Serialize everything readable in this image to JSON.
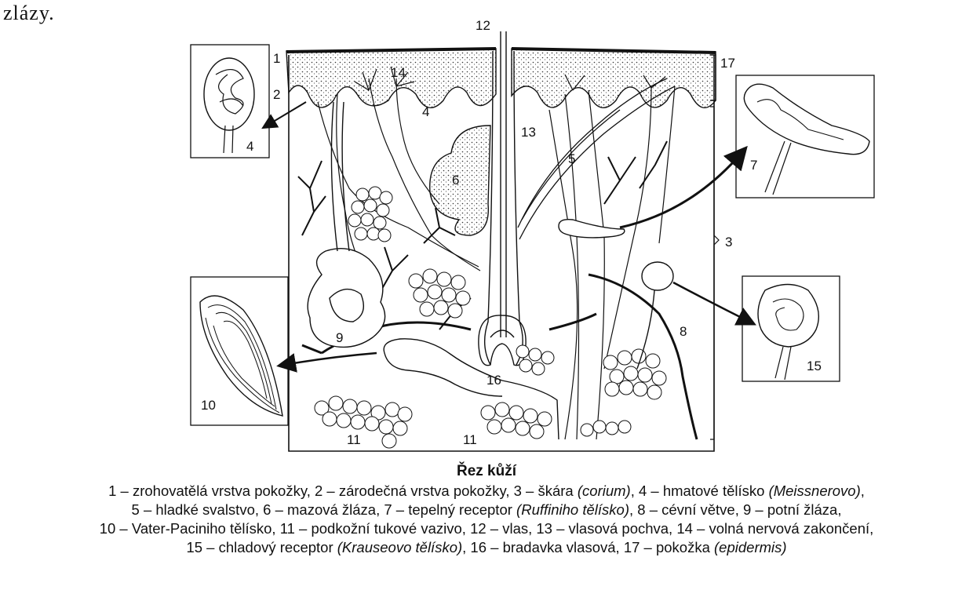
{
  "top_fragment": "zlázy.",
  "title": "Řez kůží",
  "labels": {
    "n1": "1",
    "n2": "2",
    "n3": "3",
    "n4a": "4",
    "n4b": "4",
    "n5": "5",
    "n6": "6",
    "n7": "7",
    "n8": "8",
    "n9": "9",
    "n10": "10",
    "n11a": "11",
    "n11b": "11",
    "n12": "12",
    "n13": "13",
    "n14": "14",
    "n15": "15",
    "n16": "16",
    "n17": "17"
  },
  "legend": {
    "l1a": "1 – zrohovatělá vrstva pokožky, 2 – zárodečná vrstva pokožky, 3 – škára ",
    "l1b": "(corium)",
    "l1c": ", 4 – hmatové tělísko ",
    "l1d": "(Meissnerovo)",
    "l1e": ",",
    "l2a": "5 – hladké svalstvo, 6 – mazová žláza, 7 – tepelný receptor ",
    "l2b": "(Ruffiniho tělísko)",
    "l2c": ", 8 – cévní větve, 9 – potní žláza,",
    "l3a": "10 – Vater-Paciniho tělísko, 11 – podkožní tukové vazivo, 12 – vlas, 13 – vlasová pochva, 14 – volná nervová zakončení,",
    "l4a": "15 – chladový receptor ",
    "l4b": "(Krauseovo tělísko)",
    "l4c": ", 16 – bradavka vlasová, 17 – pokožka ",
    "l4d": "(epidermis)"
  }
}
